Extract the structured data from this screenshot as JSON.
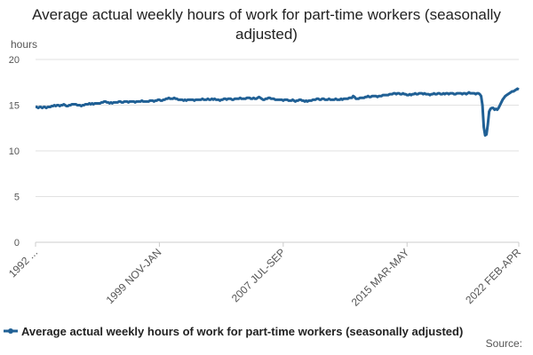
{
  "chart_data": {
    "type": "line",
    "title": "Average actual weekly hours of work for part-time workers (seasonally adjusted)",
    "y_label": "hours",
    "source": "Source:",
    "categories": [
      "1992 ...",
      null,
      null,
      null,
      null,
      null,
      null,
      null,
      null,
      null,
      null,
      null,
      null,
      null,
      null,
      null,
      null,
      null,
      null,
      null,
      null,
      null,
      null,
      null,
      null,
      null,
      null,
      null,
      null,
      null,
      null,
      null,
      null,
      null,
      null,
      null,
      null,
      null,
      null,
      null,
      null,
      null,
      null,
      null,
      null,
      null,
      null,
      null,
      null,
      null,
      null,
      null,
      null,
      null,
      null,
      null,
      null,
      null,
      null,
      null,
      null,
      null,
      null,
      null,
      null,
      null,
      null,
      null,
      null,
      null,
      null,
      null,
      null,
      null,
      null,
      null,
      null,
      null,
      null,
      null,
      null,
      null,
      null,
      null,
      null,
      null,
      null,
      null,
      null,
      null,
      null,
      null,
      "1999 NOV-JAN",
      null,
      null,
      null,
      null,
      null,
      null,
      null,
      null,
      null,
      null,
      null,
      null,
      null,
      null,
      null,
      null,
      null,
      null,
      null,
      null,
      null,
      null,
      null,
      null,
      null,
      null,
      null,
      null,
      null,
      null,
      null,
      null,
      null,
      null,
      null,
      null,
      null,
      null,
      null,
      null,
      null,
      null,
      null,
      null,
      null,
      null,
      null,
      null,
      null,
      null,
      null,
      null,
      null,
      null,
      null,
      null,
      null,
      null,
      null,
      null,
      null,
      null,
      null,
      null,
      null,
      null,
      null,
      null,
      null,
      null,
      null,
      null,
      null,
      null,
      null,
      null,
      null,
      null,
      null,
      null,
      null,
      null,
      null,
      null,
      null,
      null,
      null,
      null,
      null,
      null,
      null,
      "2007 JUL-SEP",
      null,
      null,
      null,
      null,
      null,
      null,
      null,
      null,
      null,
      null,
      null,
      null,
      null,
      null,
      null,
      null,
      null,
      null,
      null,
      null,
      null,
      null,
      null,
      null,
      null,
      null,
      null,
      null,
      null,
      null,
      null,
      null,
      null,
      null,
      null,
      null,
      null,
      null,
      null,
      null,
      null,
      null,
      null,
      null,
      null,
      null,
      null,
      null,
      null,
      null,
      null,
      null,
      null,
      null,
      null,
      null,
      null,
      null,
      null,
      null,
      null,
      null,
      null,
      null,
      null,
      null,
      null,
      null,
      null,
      null,
      null,
      null,
      null,
      null,
      null,
      null,
      null,
      null,
      null,
      null,
      null,
      null,
      null,
      null,
      null,
      null,
      null,
      null,
      null,
      null,
      null,
      "2015 MAR-MAY",
      null,
      null,
      null,
      null,
      null,
      null,
      null,
      null,
      null,
      null,
      null,
      null,
      null,
      null,
      null,
      null,
      null,
      null,
      null,
      null,
      null,
      null,
      null,
      null,
      null,
      null,
      null,
      null,
      null,
      null,
      null,
      null,
      null,
      null,
      null,
      null,
      null,
      null,
      null,
      null,
      null,
      null,
      null,
      null,
      null,
      null,
      null,
      null,
      null,
      null,
      null,
      null,
      null,
      null,
      null,
      null,
      null,
      null,
      null,
      null,
      null,
      null,
      null,
      null,
      null,
      null,
      null,
      null,
      null,
      null,
      null,
      null,
      null,
      null,
      null,
      null,
      null,
      null,
      null,
      null,
      null,
      null,
      "2022 FEB-APR"
    ],
    "series": [
      {
        "name": "Average actual weekly hours of work for part-time workers (seasonally adjusted)",
        "color": "#206095",
        "values": [
          14.8,
          14.8,
          14.7,
          14.8,
          14.8,
          14.7,
          14.8,
          14.8,
          14.7,
          14.8,
          14.8,
          14.8,
          14.9,
          14.9,
          15.0,
          14.9,
          15.0,
          15.0,
          14.9,
          15.0,
          15.0,
          15.1,
          15.0,
          14.9,
          14.9,
          15.0,
          15.0,
          15.1,
          15.1,
          15.1,
          15.1,
          15.0,
          15.0,
          15.0,
          14.9,
          15.0,
          15.0,
          15.1,
          15.1,
          15.1,
          15.2,
          15.1,
          15.2,
          15.1,
          15.2,
          15.2,
          15.2,
          15.2,
          15.2,
          15.3,
          15.3,
          15.4,
          15.4,
          15.3,
          15.3,
          15.2,
          15.3,
          15.2,
          15.3,
          15.3,
          15.3,
          15.3,
          15.4,
          15.4,
          15.3,
          15.3,
          15.4,
          15.4,
          15.4,
          15.3,
          15.4,
          15.4,
          15.4,
          15.4,
          15.3,
          15.4,
          15.4,
          15.4,
          15.4,
          15.5,
          15.4,
          15.4,
          15.4,
          15.4,
          15.4,
          15.5,
          15.5,
          15.5,
          15.4,
          15.5,
          15.5,
          15.6,
          15.6,
          15.5,
          15.5,
          15.6,
          15.6,
          15.7,
          15.7,
          15.8,
          15.7,
          15.7,
          15.7,
          15.8,
          15.7,
          15.7,
          15.6,
          15.6,
          15.6,
          15.6,
          15.5,
          15.6,
          15.5,
          15.6,
          15.6,
          15.6,
          15.6,
          15.6,
          15.5,
          15.6,
          15.6,
          15.6,
          15.6,
          15.6,
          15.7,
          15.6,
          15.6,
          15.6,
          15.7,
          15.6,
          15.6,
          15.7,
          15.6,
          15.7,
          15.6,
          15.6,
          15.6,
          15.5,
          15.6,
          15.6,
          15.7,
          15.7,
          15.6,
          15.7,
          15.7,
          15.7,
          15.6,
          15.6,
          15.7,
          15.7,
          15.7,
          15.7,
          15.8,
          15.7,
          15.7,
          15.7,
          15.7,
          15.8,
          15.8,
          15.8,
          15.7,
          15.7,
          15.8,
          15.7,
          15.7,
          15.8,
          15.9,
          15.8,
          15.7,
          15.6,
          15.6,
          15.7,
          15.7,
          15.8,
          15.8,
          15.7,
          15.7,
          15.7,
          15.6,
          15.6,
          15.6,
          15.6,
          15.6,
          15.6,
          15.5,
          15.6,
          15.6,
          15.6,
          15.5,
          15.5,
          15.5,
          15.6,
          15.5,
          15.4,
          15.5,
          15.5,
          15.6,
          15.6,
          15.5,
          15.5,
          15.4,
          15.5,
          15.4,
          15.5,
          15.5,
          15.5,
          15.6,
          15.6,
          15.6,
          15.7,
          15.7,
          15.6,
          15.6,
          15.7,
          15.7,
          15.6,
          15.6,
          15.6,
          15.7,
          15.6,
          15.6,
          15.6,
          15.6,
          15.7,
          15.6,
          15.6,
          15.6,
          15.7,
          15.6,
          15.7,
          15.7,
          15.7,
          15.7,
          15.8,
          15.8,
          15.8,
          16.0,
          15.9,
          15.7,
          15.7,
          15.7,
          15.8,
          15.8,
          15.8,
          15.8,
          15.9,
          15.9,
          16.0,
          15.9,
          15.9,
          16.0,
          16.0,
          16.0,
          16.0,
          15.9,
          16.0,
          16.0,
          16.0,
          16.1,
          16.1,
          16.1,
          16.1,
          16.1,
          16.2,
          16.2,
          16.2,
          16.3,
          16.3,
          16.2,
          16.3,
          16.3,
          16.2,
          16.2,
          16.3,
          16.2,
          16.2,
          16.1,
          16.1,
          16.2,
          16.1,
          16.2,
          16.2,
          16.3,
          16.2,
          16.2,
          16.3,
          16.3,
          16.3,
          16.2,
          16.3,
          16.2,
          16.2,
          16.2,
          16.1,
          16.2,
          16.2,
          16.3,
          16.2,
          16.2,
          16.3,
          16.3,
          16.2,
          16.2,
          16.3,
          16.2,
          16.3,
          16.3,
          16.2,
          16.3,
          16.3,
          16.3,
          16.2,
          16.2,
          16.3,
          16.3,
          16.3,
          16.3,
          16.2,
          16.3,
          16.3,
          16.2,
          16.3,
          16.4,
          16.3,
          16.3,
          16.3,
          16.3,
          16.2,
          16.3,
          16.3,
          16.2,
          16.0,
          15.0,
          12.6,
          11.7,
          11.8,
          12.9,
          14.3,
          14.6,
          14.7,
          14.7,
          14.5,
          14.6,
          14.5,
          14.7,
          15.0,
          15.3,
          15.6,
          15.8,
          16.0,
          16.1,
          16.2,
          16.3,
          16.4,
          16.5,
          16.5,
          16.6,
          16.7,
          16.8,
          16.7
        ]
      }
    ],
    "ylim": [
      0,
      20
    ],
    "yticks": [
      0,
      5,
      10,
      15,
      20
    ],
    "grid": true,
    "legend": "bottom"
  }
}
